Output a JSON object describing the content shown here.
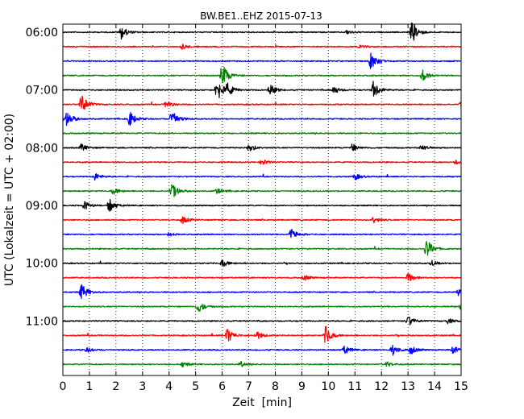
{
  "chart_data": {
    "type": "line",
    "title": "BW.BE1..EHZ 2015-07-13",
    "xlabel": "Zeit  [min]",
    "ylabel": "UTC (Lokalzeit = UTC + 02:00)",
    "xlim": [
      0,
      15
    ],
    "x_ticks": [
      "0",
      "1",
      "2",
      "3",
      "4",
      "5",
      "6",
      "7",
      "8",
      "9",
      "10",
      "11",
      "12",
      "13",
      "14",
      "15"
    ],
    "y_ticks": [
      "06:00",
      "07:00",
      "08:00",
      "09:00",
      "10:00",
      "11:00"
    ],
    "grid": "vertical dotted",
    "line_interval_min": 15,
    "colors_cycle": [
      "#000000",
      "#ff0000",
      "#0000ff",
      "#008000"
    ],
    "traces": [
      {
        "start": "06:00",
        "color": "#000000",
        "events": [
          [
            2.2,
            1.0
          ],
          [
            13.15,
            1.8
          ],
          [
            10.7,
            0.3
          ]
        ]
      },
      {
        "start": "06:15",
        "color": "#ff0000",
        "events": [
          [
            4.5,
            0.4
          ],
          [
            11.2,
            0.3
          ]
        ]
      },
      {
        "start": "06:30",
        "color": "#0000ff",
        "events": [
          [
            11.6,
            1.3
          ]
        ]
      },
      {
        "start": "06:45",
        "color": "#008000",
        "events": [
          [
            6.0,
            2.0
          ],
          [
            13.55,
            0.9
          ]
        ]
      },
      {
        "start": "07:00",
        "color": "#000000",
        "events": [
          [
            5.8,
            2.0
          ],
          [
            6.2,
            0.9
          ],
          [
            7.8,
            0.9
          ],
          [
            10.2,
            0.6
          ],
          [
            11.7,
            1.4
          ]
        ]
      },
      {
        "start": "07:15",
        "color": "#ff0000",
        "events": [
          [
            0.7,
            1.7
          ],
          [
            3.9,
            0.6
          ],
          [
            15.0,
            0.4
          ]
        ]
      },
      {
        "start": "07:30",
        "color": "#0000ff",
        "events": [
          [
            0.15,
            1.2
          ],
          [
            2.5,
            1.3
          ],
          [
            4.1,
            1.7
          ]
        ]
      },
      {
        "start": "07:45",
        "color": "#008000",
        "events": []
      },
      {
        "start": "08:00",
        "color": "#000000",
        "events": [
          [
            0.7,
            0.6
          ],
          [
            7.0,
            0.7
          ],
          [
            10.9,
            0.6
          ],
          [
            13.5,
            0.5
          ]
        ]
      },
      {
        "start": "08:15",
        "color": "#ff0000",
        "events": [
          [
            7.5,
            0.5
          ],
          [
            14.8,
            0.3
          ]
        ]
      },
      {
        "start": "08:30",
        "color": "#0000ff",
        "events": [
          [
            1.2,
            0.6
          ],
          [
            11.0,
            0.5
          ]
        ]
      },
      {
        "start": "08:45",
        "color": "#008000",
        "events": [
          [
            1.9,
            0.5
          ],
          [
            4.1,
            1.3
          ],
          [
            5.8,
            0.4
          ]
        ]
      },
      {
        "start": "09:00",
        "color": "#000000",
        "events": [
          [
            0.8,
            0.7
          ],
          [
            1.75,
            1.0
          ]
        ]
      },
      {
        "start": "09:15",
        "color": "#ff0000",
        "events": [
          [
            4.5,
            0.6
          ],
          [
            11.7,
            0.5
          ]
        ]
      },
      {
        "start": "09:30",
        "color": "#0000ff",
        "events": [
          [
            8.6,
            0.9
          ],
          [
            4.0,
            0.3
          ]
        ]
      },
      {
        "start": "09:45",
        "color": "#008000",
        "events": [
          [
            13.7,
            1.6
          ]
        ]
      },
      {
        "start": "10:00",
        "color": "#000000",
        "events": [
          [
            6.0,
            0.6
          ],
          [
            13.9,
            0.4
          ]
        ]
      },
      {
        "start": "10:15",
        "color": "#ff0000",
        "events": [
          [
            13.0,
            0.8
          ],
          [
            9.1,
            0.4
          ]
        ]
      },
      {
        "start": "10:30",
        "color": "#0000ff",
        "events": [
          [
            0.7,
            1.3
          ],
          [
            14.9,
            0.5
          ]
        ]
      },
      {
        "start": "10:45",
        "color": "#008000",
        "events": [
          [
            5.1,
            0.9
          ],
          [
            15.0,
            0.5
          ]
        ]
      },
      {
        "start": "11:00",
        "color": "#000000",
        "events": [
          [
            13.0,
            0.8
          ],
          [
            14.5,
            0.4
          ]
        ]
      },
      {
        "start": "11:15",
        "color": "#ff0000",
        "events": [
          [
            6.2,
            1.2
          ],
          [
            7.3,
            0.7
          ],
          [
            9.9,
            1.5
          ]
        ]
      },
      {
        "start": "11:30",
        "color": "#0000ff",
        "events": [
          [
            0.9,
            0.4
          ],
          [
            10.6,
            0.7
          ],
          [
            12.4,
            0.9
          ],
          [
            13.1,
            0.7
          ],
          [
            14.7,
            0.6
          ]
        ]
      },
      {
        "start": "11:45",
        "color": "#008000",
        "events": [
          [
            4.5,
            0.4
          ],
          [
            6.7,
            0.4
          ],
          [
            12.2,
            0.4
          ]
        ]
      }
    ]
  }
}
